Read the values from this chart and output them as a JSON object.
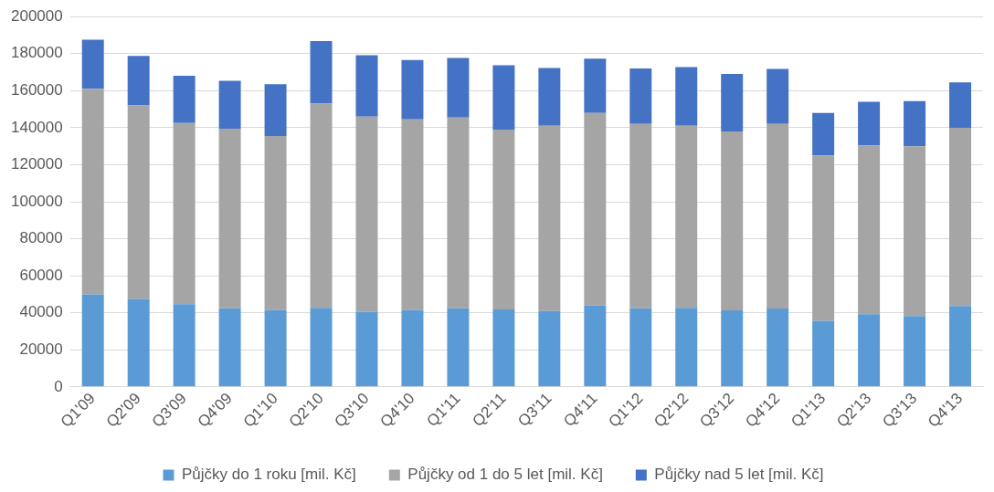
{
  "chart_data": {
    "type": "bar",
    "stacked": true,
    "categories": [
      "Q1'09",
      "Q2'09",
      "Q3'09",
      "Q4'09",
      "Q1'10",
      "Q2'10",
      "Q3'10",
      "Q4'10",
      "Q1'11",
      "Q2'11",
      "Q3'11",
      "Q4'11",
      "Q1'12",
      "Q2'12",
      "Q3'12",
      "Q4'12",
      "Q1'13",
      "Q2'13",
      "Q3'13",
      "Q4'13"
    ],
    "series": [
      {
        "name": "Půjčky do 1 roku [mil. Kč]",
        "color": "#5b9bd5",
        "values": [
          50000,
          47500,
          44700,
          42500,
          41500,
          42700,
          40500,
          41500,
          42500,
          41800,
          41000,
          44000,
          42500,
          42700,
          41300,
          42300,
          35700,
          39300,
          38300,
          43700
        ]
      },
      {
        "name": "Půjčky od 1 do 5 let [mil. Kč]",
        "color": "#a5a5a5",
        "values": [
          111000,
          104500,
          97800,
          97000,
          94000,
          110300,
          105500,
          103000,
          103000,
          97200,
          100000,
          104000,
          99500,
          98300,
          96700,
          99700,
          89300,
          91200,
          91700,
          96300
        ]
      },
      {
        "name": "Půjčky nad 5 let [mil. Kč]",
        "color": "#4472c4",
        "values": [
          26500,
          26800,
          25500,
          25800,
          28000,
          33800,
          33200,
          32000,
          32200,
          34700,
          31300,
          29300,
          30000,
          31700,
          31000,
          29800,
          23000,
          23500,
          24400,
          24500
        ]
      }
    ],
    "ylim": [
      0,
      200000
    ],
    "yticks": [
      0,
      20000,
      40000,
      60000,
      80000,
      100000,
      120000,
      140000,
      160000,
      180000,
      200000
    ],
    "grid": "y",
    "legend": "bottom"
  }
}
